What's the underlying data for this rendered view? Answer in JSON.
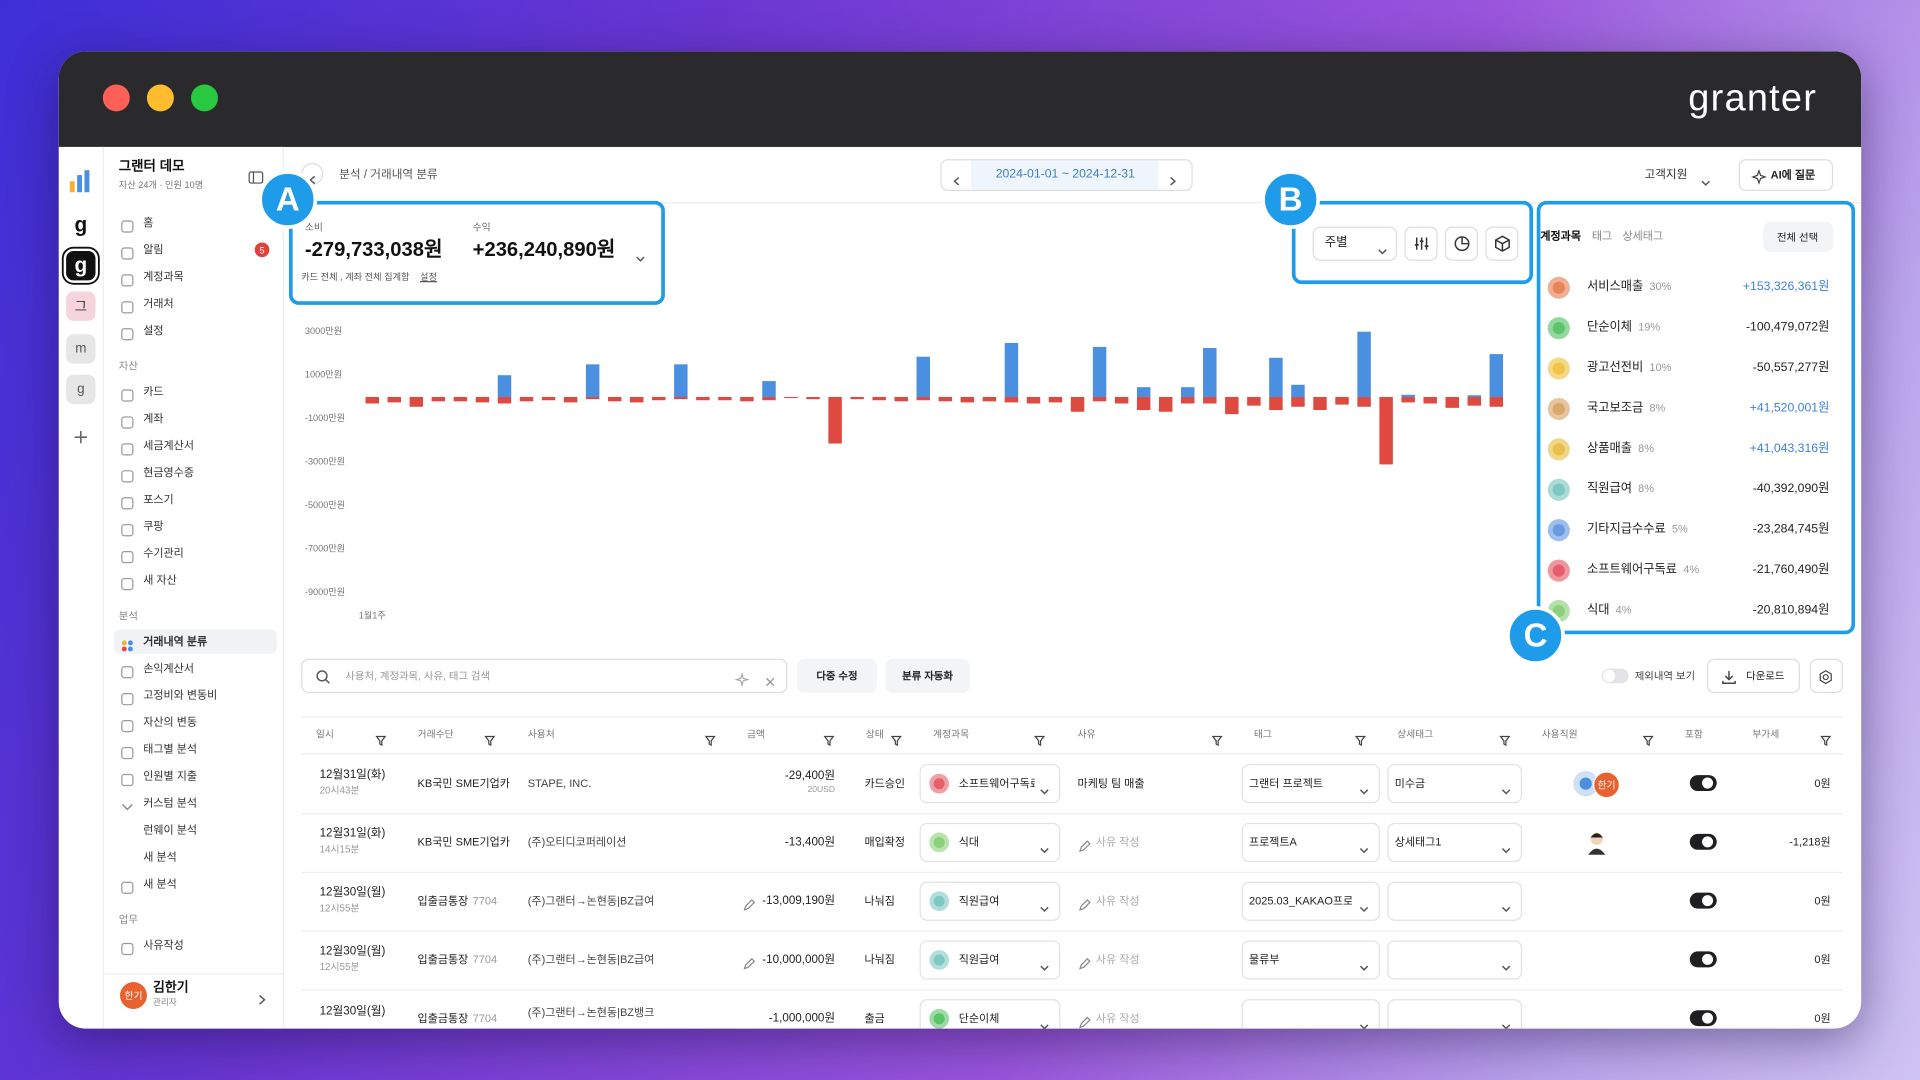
{
  "window": {
    "logo": "granter"
  },
  "annotations": [
    "A",
    "B",
    "C"
  ],
  "sidebar": {
    "rail": [
      "g",
      "g",
      "그",
      "m",
      "g"
    ],
    "org": "그랜터 데모",
    "org_meta": "자산 24개 · 인원 10명",
    "groups": [
      {
        "items": [
          {
            "label": "홈"
          },
          {
            "label": "알림",
            "badge": 5
          },
          {
            "label": "계정과목"
          },
          {
            "label": "거래처"
          },
          {
            "label": "설정"
          }
        ]
      },
      {
        "title": "자산",
        "items": [
          {
            "label": "카드"
          },
          {
            "label": "계좌"
          },
          {
            "label": "세금계산서"
          },
          {
            "label": "현금영수증"
          },
          {
            "label": "포스기"
          },
          {
            "label": "쿠팡"
          },
          {
            "label": "수기관리"
          },
          {
            "label": "새 자산"
          }
        ]
      },
      {
        "title": "분석",
        "items": [
          {
            "label": "거래내역 분류",
            "active": true
          },
          {
            "label": "손익계산서"
          },
          {
            "label": "고정비와 변동비"
          },
          {
            "label": "자산의 변동"
          },
          {
            "label": "태그별 분석"
          },
          {
            "label": "인원별 지출"
          },
          {
            "label": "커스텀 분석",
            "children": [
              "런웨이 분석",
              "새 분석"
            ]
          },
          {
            "label": "새 분석"
          }
        ]
      },
      {
        "title": "업무",
        "items": [
          {
            "label": "사유작성"
          }
        ]
      }
    ],
    "user": {
      "initials": "한기",
      "name": "김한기",
      "role": "관리자"
    }
  },
  "header": {
    "breadcrumb": "분석 / 거래내역 분류",
    "date_range": "2024-01-01 ~ 2024-12-31",
    "support": "고객지원",
    "ai_button": "AI에 질문"
  },
  "summary": {
    "expense_label": "소비",
    "expense": "-279,733,038원",
    "income_label": "수익",
    "income": "+236,240,890원",
    "note": "카드 전체 , 계좌 전체 집계함",
    "settings_link": "설정"
  },
  "controls": {
    "period": "주별"
  },
  "chart_data": {
    "type": "bar",
    "categories": [
      "1월1주",
      null,
      null,
      null,
      null,
      null,
      null,
      null,
      null,
      null,
      null,
      null,
      null,
      null,
      null,
      null,
      null,
      null,
      null,
      null,
      null,
      null,
      null,
      null,
      null,
      null,
      null,
      null,
      null,
      null,
      null,
      null,
      null,
      null,
      null,
      null,
      null,
      null,
      null,
      null,
      null,
      null,
      null,
      null,
      null,
      null,
      null,
      null,
      null,
      null,
      null,
      null
    ],
    "series": [
      {
        "color": "#4a8fe0",
        "values": [
          0,
          0,
          0,
          0,
          0,
          0,
          1000,
          0,
          0,
          0,
          1500,
          0,
          0,
          0,
          1500,
          0,
          0,
          0,
          730,
          0,
          0,
          0,
          0,
          0,
          0,
          1850,
          0,
          0,
          0,
          2480,
          0,
          0,
          0,
          2300,
          0,
          450,
          0,
          450,
          2250,
          0,
          0,
          1800,
          560,
          0,
          0,
          3000,
          0,
          100,
          0,
          0,
          80,
          1970
        ]
      },
      {
        "color": "#df4a40",
        "values": [
          -300,
          -250,
          -450,
          -200,
          -200,
          -250,
          -300,
          -200,
          -150,
          -250,
          -100,
          -200,
          -250,
          -150,
          -100,
          -150,
          -150,
          -200,
          -150,
          -50,
          -100,
          -2140,
          -100,
          -150,
          -200,
          -150,
          -200,
          -250,
          -200,
          -250,
          -300,
          -250,
          -680,
          -200,
          -300,
          -600,
          -680,
          -300,
          -300,
          -790,
          -400,
          -600,
          -450,
          -600,
          -350,
          -450,
          -3100,
          -250,
          -300,
          -500,
          -400,
          -450
        ]
      }
    ],
    "ylim": [
      -9500,
      3500
    ],
    "yticks": [
      {
        "value": 3000,
        "label": "3000만원"
      },
      {
        "value": 1000,
        "label": "1000만원"
      },
      {
        "value": -1000,
        "label": "-1000만원"
      },
      {
        "value": -3000,
        "label": "-3000만원"
      },
      {
        "value": -5000,
        "label": "-5000만원"
      },
      {
        "value": -7000,
        "label": "-7000만원"
      },
      {
        "value": -9000,
        "label": "-9000만원"
      }
    ],
    "grid": false
  },
  "breakdown": {
    "tabs": [
      "계정과목",
      "태그",
      "상세태그"
    ],
    "select_all": "전체 선택",
    "items": [
      {
        "name": "서비스매출",
        "share": "30%",
        "amount": "+153,326,361원",
        "color": "#e8845a"
      },
      {
        "name": "단순이체",
        "share": "19%",
        "amount": "-100,479,072원",
        "color": "#5cc46a"
      },
      {
        "name": "광고선전비",
        "share": "10%",
        "amount": "-50,557,277원",
        "color": "#efc447"
      },
      {
        "name": "국고보조금",
        "share": "8%",
        "amount": "+41,520,001원",
        "color": "#d9a86c"
      },
      {
        "name": "상품매출",
        "share": "8%",
        "amount": "+41,043,316원",
        "color": "#e9c04c"
      },
      {
        "name": "직원급여",
        "share": "8%",
        "amount": "-40,392,090원",
        "color": "#7ec8c1"
      },
      {
        "name": "기타지급수수료",
        "share": "5%",
        "amount": "-23,284,745원",
        "color": "#6a9be0"
      },
      {
        "name": "소프트웨어구독료",
        "share": "4%",
        "amount": "-21,760,490원",
        "color": "#e65f6c"
      },
      {
        "name": "식대",
        "share": "4%",
        "amount": "-20,810,894원",
        "color": "#8bd17c"
      }
    ]
  },
  "toolbar": {
    "search_placeholder": "사용처, 계정과목, 사유, 태그 검색",
    "bulk_edit": "다중 수정",
    "auto_classify": "분류 자동화",
    "show_excluded": "제외내역 보기",
    "download": "다운로드"
  },
  "table": {
    "columns": [
      "일시",
      "거래수단",
      "사용처",
      "금액",
      "상태",
      "계정과목",
      "사유",
      "태그",
      "상세태그",
      "사용직원",
      "포함",
      "부가세"
    ],
    "rows": [
      {
        "date": "12월31일(화)",
        "time": "20시43분",
        "method": "KB국민 SME기업카",
        "merchant": "STAPE, INC.",
        "amount": "-29,400원",
        "amount_sub": "20USD",
        "status": "카드승인",
        "category": "소프트웨어구독료",
        "memo": "마케팅 팀 매출",
        "tag": "그랜터 프로젝트",
        "subtag": "미수금",
        "staff": "한기",
        "vat": "0원"
      },
      {
        "date": "12월31일(화)",
        "time": "14시15분",
        "method": "KB국민 SME기업카",
        "merchant": "(주)오티디코퍼레이션",
        "amount": "-13,400원",
        "status": "매입확정",
        "category": "식대",
        "memo_placeholder": "사유 작성",
        "tag": "프로젝트A",
        "subtag": "상세태그1",
        "vat": "-1,218원"
      },
      {
        "date": "12월30일(월)",
        "time": "12시55분",
        "method": "입출금통장",
        "account": "7704",
        "merchant": "(주)그랜터→논현동|BZ급여",
        "amount": "-13,009,190원",
        "status": "나눠짐",
        "category": "직원급여",
        "memo_placeholder": "사유 작성",
        "tag": "2025.03_KAKAO프로",
        "vat": "0원"
      },
      {
        "date": "12월30일(월)",
        "time": "12시55분",
        "method": "입출금통장",
        "account": "7704",
        "merchant": "(주)그랜터→논현동|BZ급여",
        "amount": "-10,000,000원",
        "status": "나눠짐",
        "category": "직원급여",
        "memo_placeholder": "사유 작성",
        "tag": "물류부",
        "vat": "0원"
      },
      {
        "date": "12월30일(월)",
        "method": "입출금통장",
        "account": "7704",
        "merchant": "(주)그랜터→논현동|BZ뱅크",
        "amount": "-1,000,000원",
        "status": "출금",
        "category": "단순이체",
        "memo_placeholder": "사유 작성",
        "vat": "0원"
      }
    ]
  }
}
